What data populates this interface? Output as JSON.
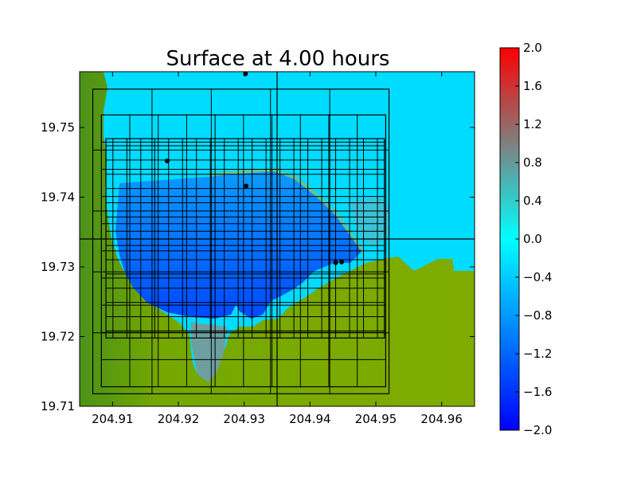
{
  "chart_data": {
    "type": "heatmap",
    "title": "Surface at 4.00 hours",
    "xlabel": "",
    "ylabel": "",
    "xlim": [
      204.905,
      204.965
    ],
    "ylim": [
      19.71,
      19.758
    ],
    "x_ticks": [
      204.91,
      204.92,
      204.93,
      204.94,
      204.95,
      204.96
    ],
    "x_tick_labels": [
      "204.91",
      "204.92",
      "204.93",
      "204.94",
      "204.95",
      "204.96"
    ],
    "y_ticks": [
      19.71,
      19.72,
      19.73,
      19.74,
      19.75
    ],
    "y_tick_labels": [
      "19.71",
      "19.72",
      "19.73",
      "19.74",
      "19.75"
    ],
    "colorbar": {
      "min": -2.0,
      "max": 2.0,
      "ticks": [
        2.0,
        1.6,
        1.2,
        0.8,
        0.4,
        0.0,
        -0.4,
        -0.8,
        -1.2,
        -1.6,
        -2.0
      ],
      "tick_labels": [
        "2.0",
        "1.6",
        "1.2",
        "0.8",
        "0.4",
        "0.0",
        "−0.4",
        "−0.8",
        "−1.2",
        "−1.6",
        "−2.0"
      ],
      "colors": [
        "#0000ff",
        "#00ffff",
        "#ff0000"
      ]
    },
    "gauges": [
      {
        "x": 204.9302,
        "y": 19.7577
      },
      {
        "x": 204.9183,
        "y": 19.7452
      },
      {
        "x": 204.9303,
        "y": 19.7416
      },
      {
        "x": 204.9439,
        "y": 19.7306
      },
      {
        "x": 204.9448,
        "y": 19.7307
      }
    ],
    "grid_patches": [
      {
        "level": 1,
        "x": [
          204.905,
          204.965
        ],
        "y": [
          19.71,
          19.758
        ]
      },
      {
        "level": 2,
        "x": [
          204.907,
          204.952
        ],
        "y": [
          19.7118,
          19.7555
        ]
      },
      {
        "level": 3,
        "x": [
          204.9083,
          204.9515
        ],
        "y": [
          19.7128,
          19.7518
        ]
      },
      {
        "level": 4,
        "x": [
          204.909,
          204.9513
        ],
        "y": [
          19.7198,
          19.7484
        ]
      }
    ],
    "colors": {
      "land": "#7aab00",
      "water_shallow": "#00e2ff",
      "water_deep": "#0050ff",
      "grid_line": "#000000"
    }
  }
}
